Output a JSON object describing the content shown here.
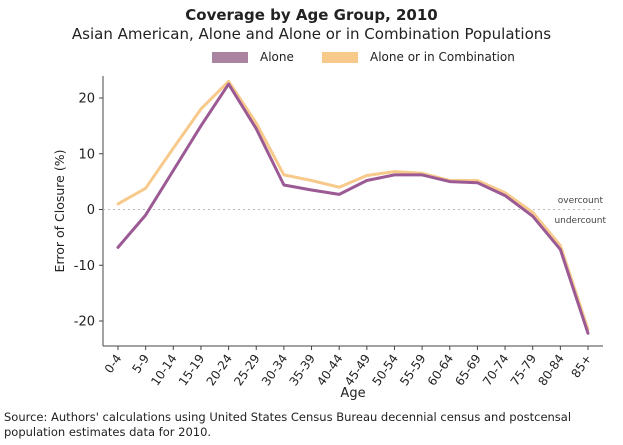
{
  "chart_data": {
    "type": "line",
    "title": "Coverage by Age Group, 2010",
    "subtitle": "Asian American, Alone and Alone or in Combination Populations",
    "xlabel": "Age",
    "ylabel": "Error of Closure (%)",
    "ylim": [
      -24,
      24
    ],
    "yticks": [
      -20,
      -10,
      0,
      10,
      20
    ],
    "categories": [
      "0-4",
      "5-9",
      "10-14",
      "15-19",
      "20-24",
      "25-29",
      "30-34",
      "35-39",
      "40-44",
      "45-49",
      "50-54",
      "55-59",
      "60-64",
      "65-69",
      "70-74",
      "75-79",
      "80-84",
      "85+"
    ],
    "series": [
      {
        "name": "Alone",
        "color": "#9b5a94",
        "values": [
          -6.8,
          -1.0,
          7.0,
          15.0,
          22.5,
          14.5,
          4.4,
          3.5,
          2.7,
          5.2,
          6.2,
          6.2,
          5.0,
          4.8,
          2.5,
          -1.2,
          -7.2,
          -22.2
        ]
      },
      {
        "name": "Alone or in Combination",
        "color": "#f7c98a",
        "values": [
          1.0,
          3.8,
          11.0,
          18.0,
          23.0,
          15.5,
          6.2,
          5.2,
          4.0,
          6.1,
          6.8,
          6.5,
          5.2,
          5.2,
          3.0,
          -0.5,
          -6.5,
          -21.5
        ]
      }
    ],
    "annotations": {
      "over": "overcount",
      "under": "undercount"
    },
    "grid": false,
    "legend_position": "top-center"
  },
  "source": "Source: Authors' calculations using United States Census Bureau decennial census and postcensal population estimates data for 2010."
}
